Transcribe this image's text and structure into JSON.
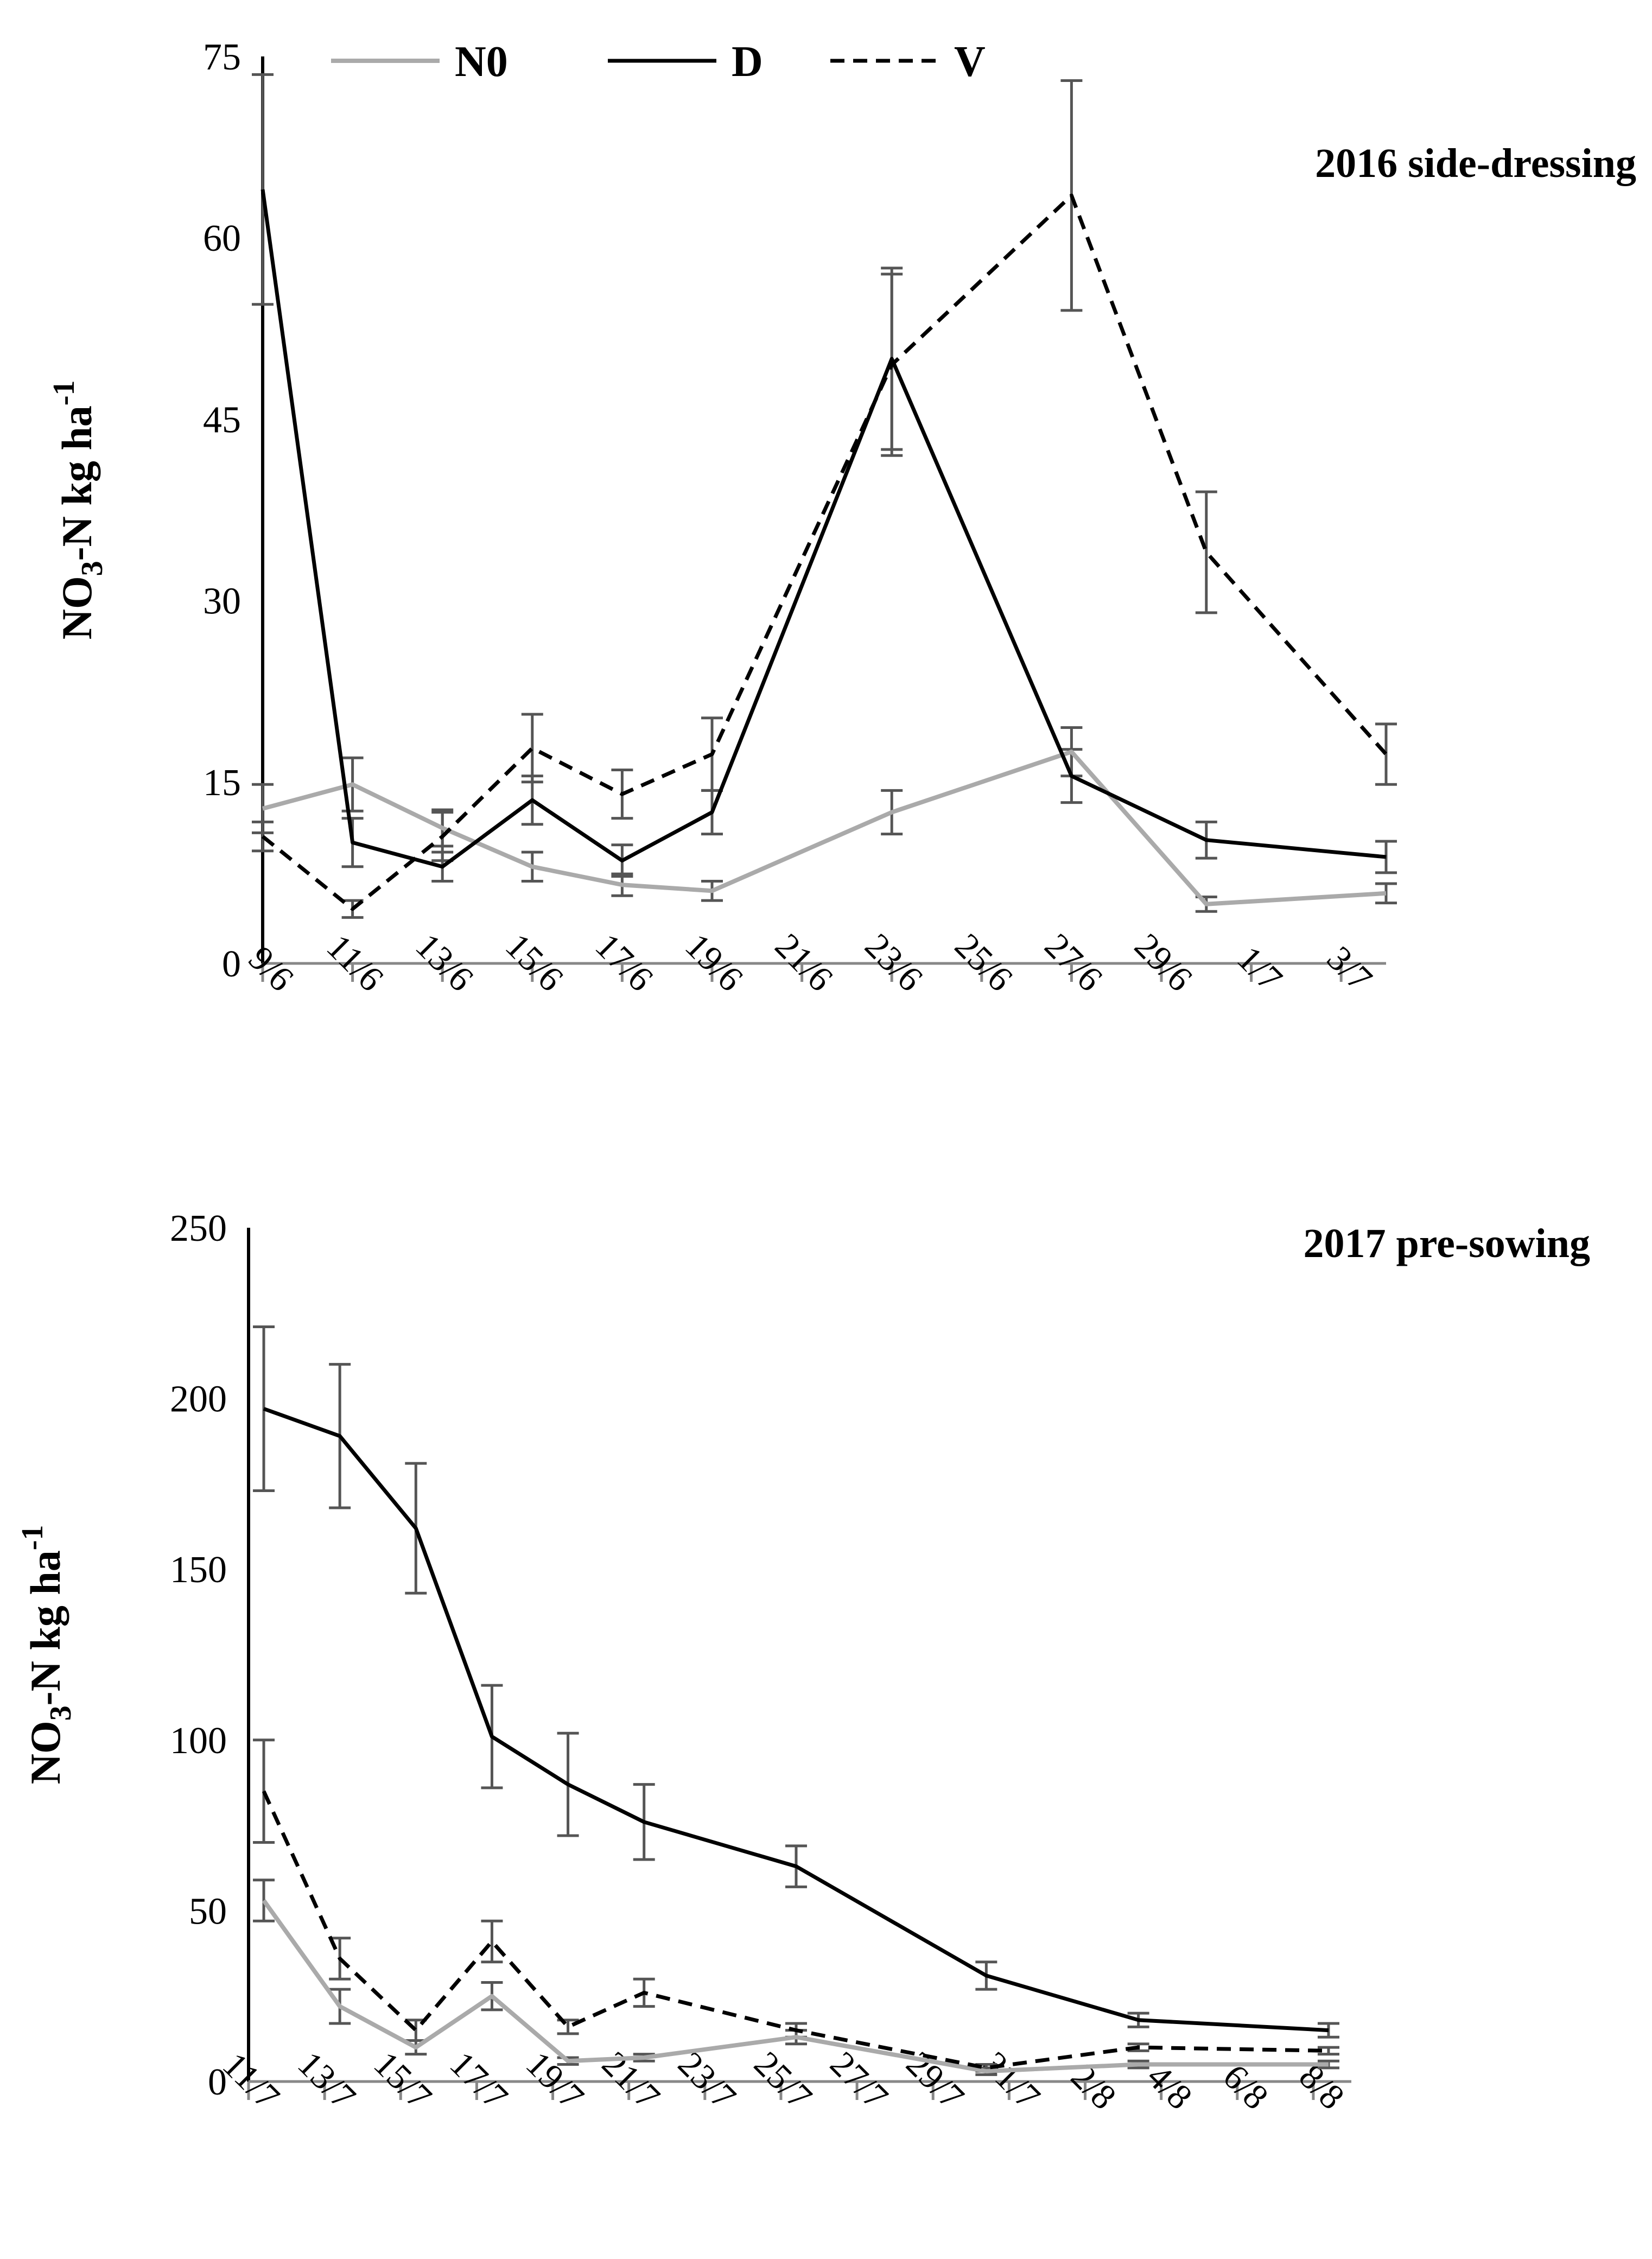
{
  "chart_data": [
    {
      "type": "line",
      "title": "2016 side-dressing",
      "ylabel_main": "NO",
      "ylabel_sub": "3",
      "ylabel_rest": "-N kg ha",
      "ylabel_sup": "-1",
      "ylim": [
        0,
        75
      ],
      "yticks": [
        0,
        15,
        30,
        45,
        60,
        75
      ],
      "x_ticks": [
        "9/6",
        "11/6",
        "13/6",
        "15/6",
        "17/6",
        "19/6",
        "21/6",
        "23/6",
        "25/6",
        "27/6",
        "29/6",
        "1/7",
        "3/7"
      ],
      "x_tick_days": [
        0,
        2,
        4,
        6,
        8,
        10,
        12,
        14,
        16,
        18,
        20,
        22,
        24
      ],
      "xlim": [
        0,
        25
      ],
      "legend": {
        "placement": "top-left",
        "entries": [
          "N0",
          "D",
          "V"
        ]
      },
      "series": [
        {
          "name": "N0",
          "color": "#aaaaaa",
          "dash": "solid",
          "days": [
            0,
            2,
            4,
            6,
            8,
            10,
            14,
            18,
            21,
            25
          ],
          "values": [
            12.8,
            14.8,
            11.2,
            8.0,
            6.5,
            6.0,
            12.5,
            17.5,
            4.9,
            5.8
          ],
          "errors": [
            2.0,
            2.2,
            1.5,
            1.2,
            0.9,
            0.8,
            1.8,
            2.0,
            0.6,
            0.8
          ]
        },
        {
          "name": "D",
          "color": "#000000",
          "dash": "solid",
          "days": [
            0,
            2,
            4,
            6,
            8,
            10,
            14,
            18,
            21,
            25
          ],
          "values": [
            64,
            10,
            8,
            13.5,
            8.5,
            12.5,
            50,
            15.5,
            10.2,
            8.8
          ],
          "errors": [
            9.5,
            2.0,
            1.2,
            2.0,
            1.3,
            1.8,
            7.5,
            2.2,
            1.5,
            1.3
          ]
        },
        {
          "name": "V",
          "color": "#000000",
          "dash": "dashed",
          "days": [
            0,
            2,
            4,
            6,
            8,
            10,
            14,
            18,
            21,
            25
          ],
          "values": [
            10.5,
            4.5,
            10.5,
            17.8,
            14.0,
            17.3,
            49.5,
            63.5,
            34,
            17.3
          ],
          "errors": [
            1.2,
            0.7,
            2.0,
            2.8,
            2.0,
            3.0,
            7.5,
            9.5,
            5.0,
            2.5
          ]
        }
      ]
    },
    {
      "type": "line",
      "title": "2017 pre-sowing",
      "ylabel_main": "NO",
      "ylabel_sub": "3",
      "ylabel_rest": "-N kg ha",
      "ylabel_sup": "-1",
      "ylim": [
        0,
        250
      ],
      "yticks": [
        0,
        50,
        100,
        150,
        200,
        250
      ],
      "x_ticks": [
        "11/7",
        "13/7",
        "15/7",
        "17/7",
        "19/7",
        "21/7",
        "23/7",
        "25/7",
        "27/7",
        "29/7",
        "31/7",
        "2/8",
        "4/8",
        "6/8",
        "8/8"
      ],
      "x_tick_days": [
        0,
        2,
        4,
        6,
        8,
        10,
        12,
        14,
        16,
        18,
        20,
        22,
        24,
        26,
        28
      ],
      "xlim": [
        0,
        29
      ],
      "series": [
        {
          "name": "N0",
          "color": "#aaaaaa",
          "dash": "solid",
          "days": [
            0.4,
            2.4,
            4.4,
            6.4,
            8.4,
            10.4,
            14.4,
            19.4,
            23.4,
            28.4
          ],
          "values": [
            53,
            22,
            10,
            25,
            6,
            7,
            13,
            3,
            5,
            5
          ],
          "errors": [
            6,
            5,
            2,
            4,
            1,
            1,
            2,
            1,
            1,
            1
          ]
        },
        {
          "name": "D",
          "color": "#000000",
          "dash": "solid",
          "days": [
            0.4,
            2.4,
            4.4,
            6.4,
            8.4,
            10.4,
            14.4,
            19.4,
            23.4,
            28.4
          ],
          "values": [
            197,
            189,
            162,
            101,
            87,
            76,
            63,
            31,
            18,
            15
          ],
          "errors": [
            24,
            21,
            19,
            15,
            15,
            11,
            6,
            4,
            2,
            2
          ]
        },
        {
          "name": "V",
          "color": "#000000",
          "dash": "dashed",
          "days": [
            0.4,
            2.4,
            4.4,
            6.4,
            8.4,
            10.4,
            14.4,
            19.4,
            23.4,
            28.4
          ],
          "values": [
            85,
            36,
            15,
            41,
            16,
            26,
            15,
            4,
            10,
            9
          ],
          "errors": [
            15,
            6,
            3,
            6,
            2,
            4,
            2,
            1,
            1,
            1
          ]
        }
      ]
    }
  ]
}
